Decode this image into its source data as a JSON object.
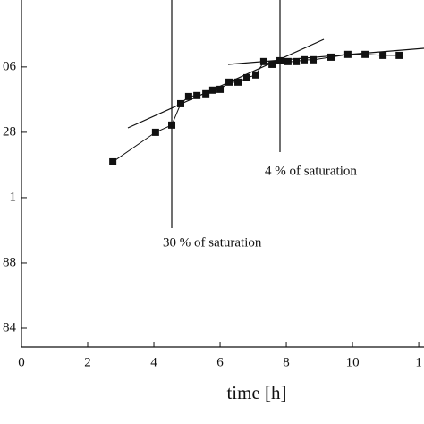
{
  "chart_data": {
    "type": "line",
    "x_label": "time [h]",
    "annotations": [
      "4 % of saturation",
      "30 % of saturation"
    ],
    "series": [
      {
        "color": "#111111",
        "x": [
          2.76,
          4.05,
          4.54,
          4.81,
          5.05,
          5.3,
          5.57,
          5.78,
          6.0,
          6.27,
          6.54,
          6.81,
          7.08,
          7.32,
          7.57,
          7.81,
          8.05,
          8.3,
          8.54,
          8.81,
          9.35,
          9.86,
          10.38,
          10.92,
          11.41
        ],
        "values": [
          1.0219,
          1.04,
          1.0444,
          1.0575,
          1.0619,
          1.0625,
          1.0636,
          1.0658,
          1.0663,
          1.0707,
          1.0707,
          1.0734,
          1.0751,
          1.0833,
          1.0816,
          1.0838,
          1.0833,
          1.0833,
          1.0844,
          1.0844,
          1.086,
          1.0877,
          1.0877,
          1.0871,
          1.0871
        ]
      }
    ],
    "xlim": [
      0,
      12.16
    ],
    "ylim": [
      0.9085,
      1.121
    ],
    "xticks": [
      0,
      2,
      4,
      6,
      8,
      10,
      {
        "value": 12,
        "label": "1"
      }
    ],
    "yticks": [
      {
        "value": 0.92,
        "label": "84"
      },
      {
        "value": 0.96,
        "label": "88"
      },
      1,
      {
        "value": 1.04,
        "label": "28"
      },
      {
        "value": 1.08,
        "label": "06"
      }
    ]
  }
}
